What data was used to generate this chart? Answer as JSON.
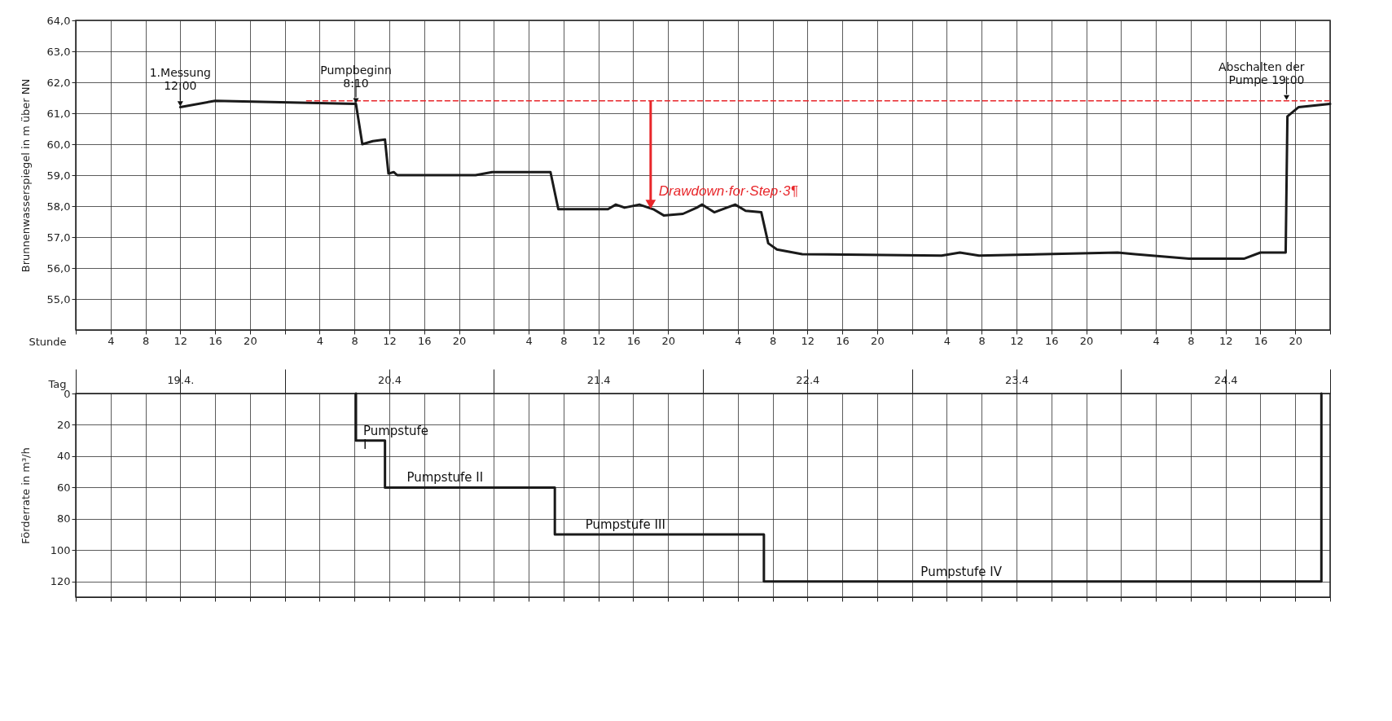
{
  "chart_data": [
    {
      "type": "line",
      "ylabel": "Brunnenwasserspiegel in m über NN",
      "xlabel": "Stunde",
      "xlim": [
        "--04-19T00:00",
        "--04-25T00:00"
      ],
      "ylim": [
        54,
        64
      ],
      "xticks": [
        {
          "value": "--04-19T00:00",
          "label": null
        },
        {
          "value": "--04-19T04:00",
          "label": "4"
        },
        {
          "value": "--04-19T08:00",
          "label": "8"
        },
        {
          "value": "--04-19T12:00",
          "label": "12"
        },
        {
          "value": "--04-19T16:00",
          "label": "16"
        },
        {
          "value": "--04-19T20:00",
          "label": "20"
        },
        {
          "value": "--04-20T00:00",
          "label": null
        },
        {
          "value": "--04-20T04:00",
          "label": "4"
        },
        {
          "value": "--04-20T08:00",
          "label": "8"
        },
        {
          "value": "--04-20T12:00",
          "label": "12"
        },
        {
          "value": "--04-20T16:00",
          "label": "16"
        },
        {
          "value": "--04-20T20:00",
          "label": "20"
        },
        {
          "value": "--04-21T00:00",
          "label": null
        },
        {
          "value": "--04-21T04:00",
          "label": "4"
        },
        {
          "value": "--04-21T08:00",
          "label": "8"
        },
        {
          "value": "--04-21T12:00",
          "label": "12"
        },
        {
          "value": "--04-21T16:00",
          "label": "16"
        },
        {
          "value": "--04-21T20:00",
          "label": "20"
        },
        {
          "value": "--04-22T00:00",
          "label": null
        },
        {
          "value": "--04-22T04:00",
          "label": "4"
        },
        {
          "value": "--04-22T08:00",
          "label": "8"
        },
        {
          "value": "--04-22T12:00",
          "label": "12"
        },
        {
          "value": "--04-22T16:00",
          "label": "16"
        },
        {
          "value": "--04-22T20:00",
          "label": "20"
        },
        {
          "value": "--04-23T00:00",
          "label": null
        },
        {
          "value": "--04-23T04:00",
          "label": "4"
        },
        {
          "value": "--04-23T08:00",
          "label": "8"
        },
        {
          "value": "--04-23T12:00",
          "label": "12"
        },
        {
          "value": "--04-23T16:00",
          "label": "16"
        },
        {
          "value": "--04-23T20:00",
          "label": "20"
        },
        {
          "value": "--04-24T00:00",
          "label": null
        },
        {
          "value": "--04-24T04:00",
          "label": "4"
        },
        {
          "value": "--04-24T08:00",
          "label": "8"
        },
        {
          "value": "--04-24T12:00",
          "label": "12"
        },
        {
          "value": "--04-24T16:00",
          "label": "16"
        },
        {
          "value": "--04-24T20:00",
          "label": "20"
        },
        {
          "value": "--04-25T00:00",
          "label": null
        }
      ],
      "yticks": [
        {
          "value": 55,
          "label": "55,0"
        },
        {
          "value": 56,
          "label": "56,0"
        },
        {
          "value": 57,
          "label": "57,0"
        },
        {
          "value": 58,
          "label": "58,0"
        },
        {
          "value": 59,
          "label": "59,0"
        },
        {
          "value": 60,
          "label": "60,0"
        },
        {
          "value": 61,
          "label": "61,0"
        },
        {
          "value": 62,
          "label": "62,0"
        },
        {
          "value": 63,
          "label": "63,0"
        },
        {
          "value": 64,
          "label": "64,0"
        }
      ],
      "grid": true,
      "series": [
        {
          "color": "#1a1a1a",
          "x": [
            "--04-19T12:00",
            "--04-19T16:00",
            "--04-20T08:10",
            "--04-20T08:54",
            "--04-20T10:06",
            "--04-20T11:30",
            "--04-20T11:54",
            "--04-20T12:30",
            "--04-20T12:54",
            "--04-20T21:54",
            "--04-20T23:48",
            "--04-21T06:30",
            "--04-21T07:24",
            "--04-21T13:06",
            "--04-21T14:00",
            "--04-21T15:00",
            "--04-21T16:42",
            "--04-21T18:18",
            "--04-21T19:30",
            "--04-21T21:42",
            "--04-21T23:18",
            "--04-21T23:54",
            "--04-22T01:18",
            "--04-22T03:42",
            "--04-22T04:54",
            "--04-22T06:42",
            "--04-22T07:30",
            "--04-22T08:30",
            "--04-22T11:24",
            "--04-23T03:24",
            "--04-23T05:30",
            "--04-23T07:42",
            "--04-23T23:36",
            "--04-24T01:36",
            "--04-24T07:48",
            "--04-24T14:06",
            "--04-24T16:00",
            "--04-24T18:54",
            "--04-24T19:06",
            "--04-24T20:24",
            "--04-25T00:00"
          ],
          "values": [
            61.2,
            61.4,
            61.3,
            60.0,
            60.1,
            60.15,
            59.05,
            59.1,
            59.0,
            59.0,
            59.1,
            59.1,
            57.9,
            57.9,
            58.05,
            57.95,
            58.05,
            57.9,
            57.7,
            57.75,
            57.95,
            58.05,
            57.8,
            58.05,
            57.85,
            57.8,
            56.8,
            56.6,
            56.45,
            56.4,
            56.5,
            56.4,
            56.5,
            56.45,
            56.3,
            56.3,
            56.5,
            56.5,
            60.9,
            61.2,
            61.3
          ]
        },
        {
          "color": "#e8262a",
          "line_style": "dashed",
          "x": [
            "--04-20T02:30",
            "--04-25T00:00"
          ],
          "values": [
            61.4,
            61.4
          ]
        }
      ],
      "annotations": [
        {
          "text": "1.Messung\n12:00",
          "x": "--04-19T12:00",
          "y": 61.2
        },
        {
          "text": "Pumpbeginn\n8:10",
          "x": "--04-20T08:10",
          "y": 61.3
        },
        {
          "text": "Drawdown·for·Step·3¶",
          "x": "--04-21T18:00",
          "y": 57.9
        },
        {
          "text": "Abschalten der\nPumpe 19:00",
          "x": "--04-24T19:00",
          "y": 61.4
        }
      ]
    },
    {
      "type": "line",
      "ylabel": "Förderrate in m³/h",
      "x2label": "Tag",
      "xlim": [
        "--04-19T00:00",
        "--04-25T00:00"
      ],
      "ylim": [
        130,
        0
      ],
      "x2lim": [
        "--04-19T00:00",
        "--04-25T00:00"
      ],
      "tick_labels": "y",
      "xticks": [
        {
          "value": "--04-19T00:00",
          "label": null
        },
        {
          "value": "--04-19T04:00",
          "label": null
        },
        {
          "value": "--04-19T08:00",
          "label": null
        },
        {
          "value": "--04-19T12:00",
          "label": null
        },
        {
          "value": "--04-19T16:00",
          "label": null
        },
        {
          "value": "--04-19T20:00",
          "label": null
        },
        {
          "value": "--04-20T00:00",
          "label": null
        },
        {
          "value": "--04-20T04:00",
          "label": null
        },
        {
          "value": "--04-20T08:00",
          "label": null
        },
        {
          "value": "--04-20T12:00",
          "label": null
        },
        {
          "value": "--04-20T16:00",
          "label": null
        },
        {
          "value": "--04-20T20:00",
          "label": null
        },
        {
          "value": "--04-21T00:00",
          "label": null
        },
        {
          "value": "--04-21T04:00",
          "label": null
        },
        {
          "value": "--04-21T08:00",
          "label": null
        },
        {
          "value": "--04-21T12:00",
          "label": null
        },
        {
          "value": "--04-21T16:00",
          "label": null
        },
        {
          "value": "--04-21T20:00",
          "label": null
        },
        {
          "value": "--04-22T00:00",
          "label": null
        },
        {
          "value": "--04-22T04:00",
          "label": null
        },
        {
          "value": "--04-22T08:00",
          "label": null
        },
        {
          "value": "--04-22T12:00",
          "label": null
        },
        {
          "value": "--04-22T16:00",
          "label": null
        },
        {
          "value": "--04-22T20:00",
          "label": null
        },
        {
          "value": "--04-23T00:00",
          "label": null
        },
        {
          "value": "--04-23T04:00",
          "label": null
        },
        {
          "value": "--04-23T08:00",
          "label": null
        },
        {
          "value": "--04-23T12:00",
          "label": null
        },
        {
          "value": "--04-23T16:00",
          "label": null
        },
        {
          "value": "--04-23T20:00",
          "label": null
        },
        {
          "value": "--04-24T00:00",
          "label": null
        },
        {
          "value": "--04-24T04:00",
          "label": null
        },
        {
          "value": "--04-24T08:00",
          "label": null
        },
        {
          "value": "--04-24T12:00",
          "label": null
        },
        {
          "value": "--04-24T16:00",
          "label": null
        },
        {
          "value": "--04-24T20:00",
          "label": null
        },
        {
          "value": "--04-25T00:00",
          "label": null
        }
      ],
      "x2ticks": [
        {
          "value": "--04-19T00:00",
          "label": null
        },
        {
          "value": "--04-19T12:00",
          "label": "19.4."
        },
        {
          "value": "--04-20T00:00",
          "label": null
        },
        {
          "value": "--04-20T12:00",
          "label": "20.4"
        },
        {
          "value": "--04-21T00:00",
          "label": null
        },
        {
          "value": "--04-21T12:00",
          "label": "21.4"
        },
        {
          "value": "--04-22T00:00",
          "label": null
        },
        {
          "value": "--04-22T12:00",
          "label": "22.4"
        },
        {
          "value": "--04-23T00:00",
          "label": null
        },
        {
          "value": "--04-23T12:00",
          "label": "23.4"
        },
        {
          "value": "--04-24T00:00",
          "label": null
        },
        {
          "value": "--04-24T12:00",
          "label": "24.4"
        },
        {
          "value": "--04-25T00:00",
          "label": null
        }
      ],
      "yticks": [
        0,
        20,
        40,
        60,
        80,
        100,
        120
      ],
      "grid": true,
      "series": [
        {
          "color": "#1a1a1a",
          "x": [
            "--04-20T08:10",
            "--04-20T08:10",
            "--04-20T11:30",
            "--04-20T11:30",
            "--04-21T07:00",
            "--04-21T07:00",
            "--04-22T07:00",
            "--04-22T07:00",
            "--04-24T23:00",
            "--04-24T23:00"
          ],
          "values": [
            0,
            30,
            30,
            60,
            60,
            90,
            90,
            120,
            120,
            0
          ]
        }
      ],
      "annotations": [
        {
          "text": "Pumpstufe\nI",
          "x": "--04-20T09:00",
          "y": 30
        },
        {
          "text": "Pumpstufe II",
          "x": "--04-20T14:00",
          "y": 60
        },
        {
          "text": "Pumpstufe III",
          "x": "--04-21T10:30",
          "y": 90
        },
        {
          "text": "Pumpstufe IV",
          "x": "--04-23T01:00",
          "y": 120
        }
      ]
    }
  ]
}
